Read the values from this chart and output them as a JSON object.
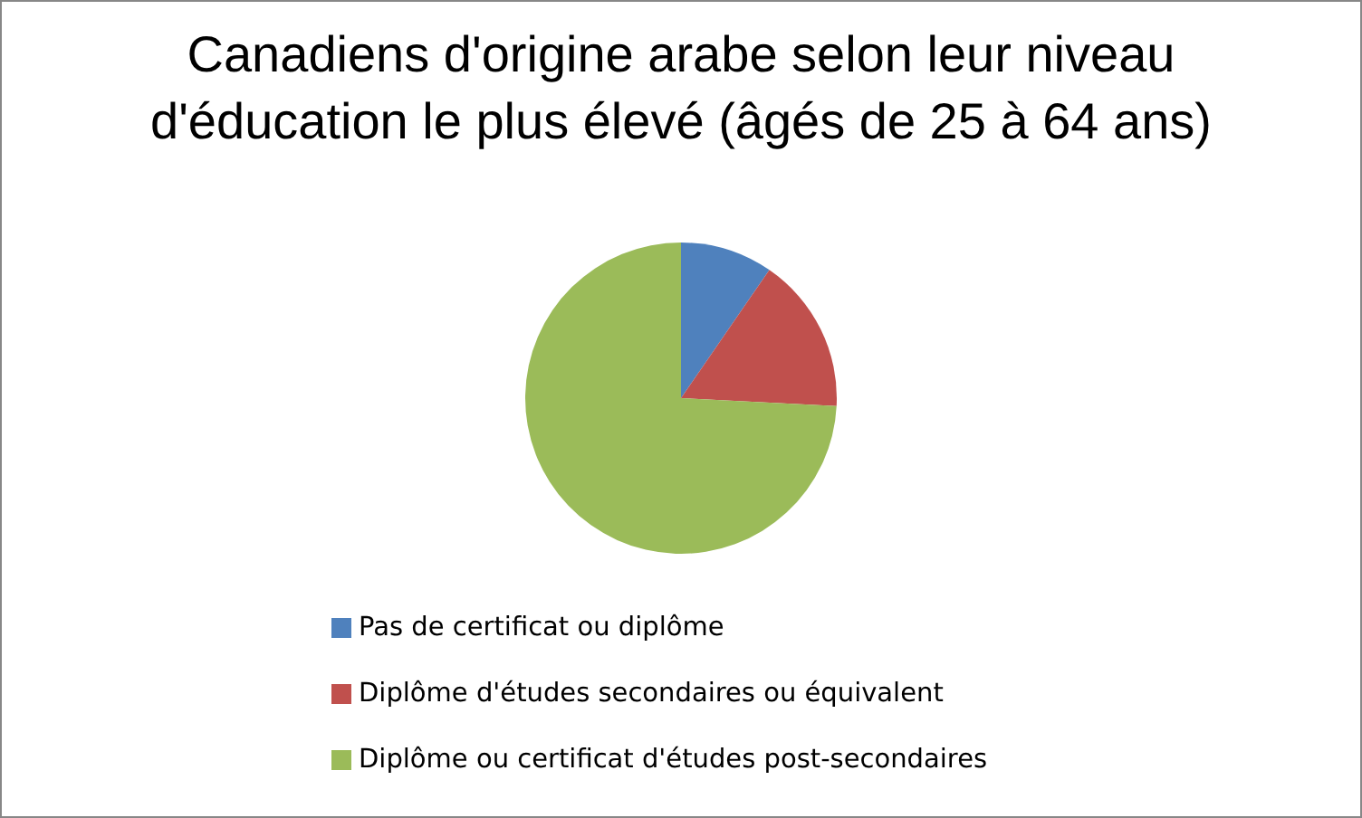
{
  "chart_data": {
    "type": "pie",
    "title": "Canadiens d'origine arabe selon leur niveau d'éducation le plus élevé (âgés de 25 à 64 ans)",
    "categories": [
      "Pas de certificat ou diplôme",
      "Diplôme d'études secondaires ou équivalent",
      "Diplôme ou certificat d'études post-secondaires"
    ],
    "values": [
      9.6,
      16.2,
      74.2
    ],
    "colors": [
      "#4f81bd",
      "#c0504d",
      "#9bbb59"
    ],
    "legend": "bottom"
  }
}
